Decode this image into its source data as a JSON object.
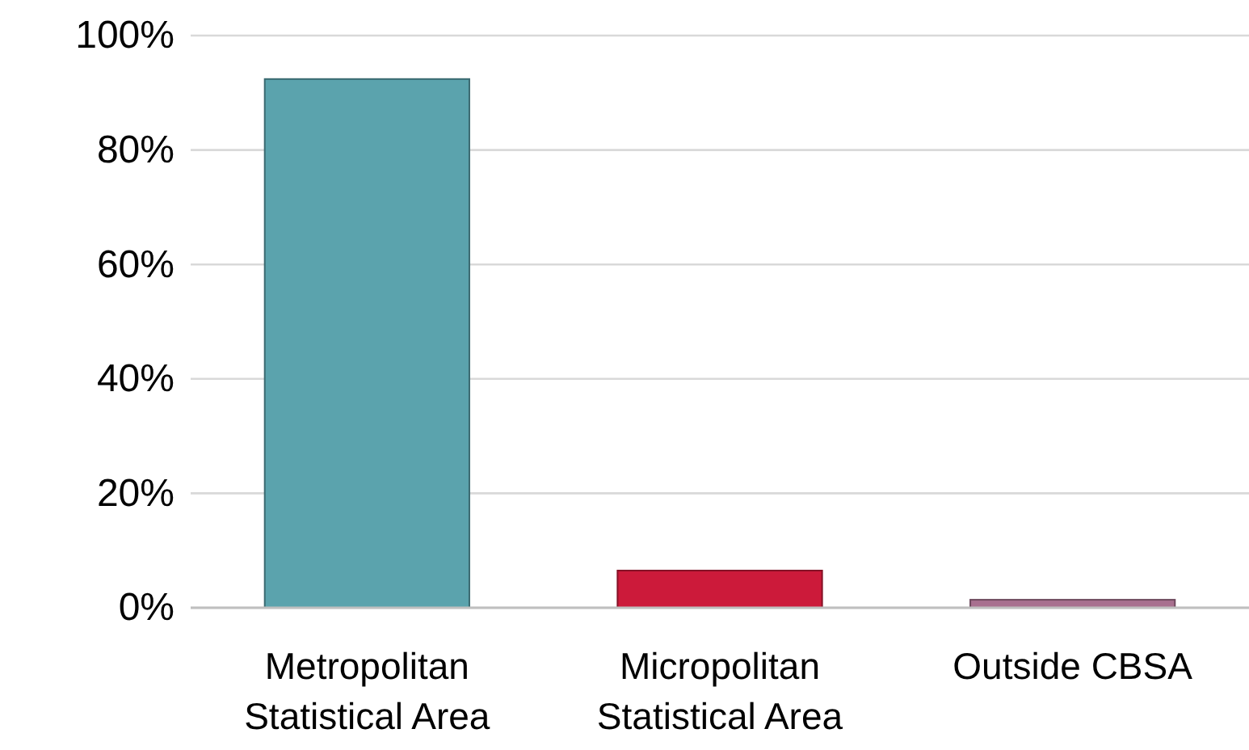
{
  "chart_data": {
    "type": "bar",
    "categories": [
      "Metropolitan Statistical Area",
      "Micropolitan Statistical Area",
      "Outside CBSA"
    ],
    "values": [
      92.4,
      6.5,
      1.4
    ],
    "colors": [
      "#5ba3ad",
      "#cc1a3a",
      "#a8708f"
    ],
    "ylim": [
      0,
      100
    ],
    "yticks": [
      {
        "value": 0,
        "label": "0%"
      },
      {
        "value": 20,
        "label": "20%"
      },
      {
        "value": 40,
        "label": "40%"
      },
      {
        "value": 60,
        "label": "60%"
      },
      {
        "value": 80,
        "label": "80%"
      },
      {
        "value": 100,
        "label": "100%"
      }
    ],
    "grid": "y"
  }
}
